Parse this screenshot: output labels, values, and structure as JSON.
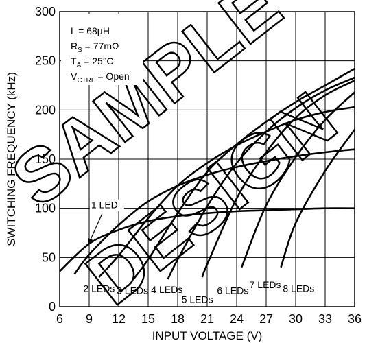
{
  "watermark": [
    "SAMPLE",
    "DESIGN"
  ],
  "chart_data": {
    "type": "line",
    "xlabel": "INPUT VOLTAGE (V)",
    "ylabel": "SWITCHING FREQUENCY (kHz)",
    "xlim": [
      6,
      36
    ],
    "ylim": [
      0,
      300
    ],
    "xticks": [
      6,
      9,
      12,
      15,
      18,
      21,
      24,
      27,
      30,
      33,
      36
    ],
    "yticks": [
      0,
      50,
      100,
      150,
      200,
      250,
      300
    ],
    "grid": true,
    "conditions": [
      {
        "main": "L = 68µH",
        "sub": "",
        "rest": ""
      },
      {
        "main": "R",
        "sub": "S",
        "rest": " = 77mΩ"
      },
      {
        "main": "T",
        "sub": "A",
        "rest": " = 25°C"
      },
      {
        "main": "V",
        "sub": "CTRL",
        "rest": " = Open"
      }
    ],
    "series": [
      {
        "name": "1 LED",
        "x": [
          6,
          9,
          12,
          15,
          18,
          21,
          24,
          27,
          30,
          33,
          36
        ],
        "y": [
          36,
          64,
          78,
          87,
          92,
          95,
          97,
          98,
          99,
          100,
          100
        ]
      },
      {
        "name": "2 LEDs",
        "x": [
          7.5,
          9,
          12,
          15,
          18,
          21,
          24,
          27,
          30,
          33,
          36
        ],
        "y": [
          33,
          53,
          83,
          107,
          123,
          134,
          142,
          148,
          153,
          157,
          160
        ]
      },
      {
        "name": "3 LEDs",
        "x": [
          10,
          12,
          15,
          18,
          21,
          24,
          27,
          30,
          33,
          36
        ],
        "y": [
          30,
          52,
          90,
          123,
          146,
          164,
          178,
          190,
          198,
          203
        ]
      },
      {
        "name": "4 LEDs",
        "x": [
          13.5,
          15,
          18,
          21,
          24,
          27,
          30,
          33,
          36
        ],
        "y": [
          28,
          48,
          95,
          137,
          165,
          188,
          208,
          225,
          242
        ]
      },
      {
        "name": "5 LEDs",
        "x": [
          17,
          18,
          21,
          24,
          27,
          30,
          33,
          36
        ],
        "y": [
          28,
          48,
          102,
          146,
          178,
          202,
          220,
          233
        ]
      },
      {
        "name": "6 LEDs",
        "x": [
          20.5,
          21,
          24,
          27,
          30,
          33,
          36
        ],
        "y": [
          30,
          43,
          110,
          157,
          192,
          215,
          230
        ]
      },
      {
        "name": "7 LEDs",
        "x": [
          24.5,
          27,
          30,
          33,
          36
        ],
        "y": [
          40,
          103,
          152,
          190,
          218
        ]
      },
      {
        "name": "8 LEDs",
        "x": [
          28.5,
          30,
          33,
          36
        ],
        "y": [
          40,
          85,
          138,
          180
        ]
      }
    ],
    "annotations": [
      {
        "text": "1 LED",
        "x": 9.2,
        "y": 100,
        "arrow_to": [
          8.9,
          63
        ]
      },
      {
        "text": "2 LEDs",
        "x": 8.4,
        "y": 15
      },
      {
        "text": "3 LEDs",
        "x": 11.8,
        "y": 13
      },
      {
        "text": "4 LEDs",
        "x": 15.3,
        "y": 14
      },
      {
        "text": "5 LEDs",
        "x": 18.4,
        "y": 4
      },
      {
        "text": "6 LEDs",
        "x": 22.0,
        "y": 13
      },
      {
        "text": "7 LEDs",
        "x": 25.3,
        "y": 19
      },
      {
        "text": "8 LEDs",
        "x": 28.7,
        "y": 15
      }
    ]
  }
}
